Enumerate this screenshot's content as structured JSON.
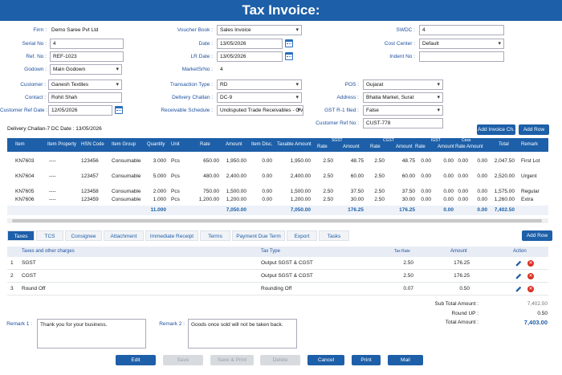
{
  "title": "Tax Invoice:",
  "form": {
    "firm": {
      "label": "Firm :",
      "value": "Demo Saree Pvt Ltd"
    },
    "serial_no": {
      "label": "Serial No :",
      "value": "4"
    },
    "ref_no": {
      "label": "Ref. No :",
      "value": "REF-1023"
    },
    "godown": {
      "label": "Godown :",
      "value": "Main Godown"
    },
    "voucher_book": {
      "label": "Voucher Book :",
      "value": "Sales Invoice"
    },
    "date": {
      "label": "Date :",
      "value": "13/05/2026"
    },
    "lr_date": {
      "label": "LR Date :",
      "value": "13/05/2026"
    },
    "market_sr_no": {
      "label": "MarketSrNo :",
      "value": "4"
    },
    "swdc": {
      "label": "SWDC :",
      "value": "4"
    },
    "cost_center": {
      "label": "Cost Center :",
      "value": "Default"
    },
    "indent_no": {
      "label": "Indent No :",
      "value": ""
    },
    "customer": {
      "label": "Customer :",
      "value": "Ganesh Textiles"
    },
    "contact": {
      "label": "Contact :",
      "value": "Rohit Shah"
    },
    "customer_ref_date": {
      "label": "Customer Ref Date :",
      "value": "12/05/2026"
    },
    "transaction_type": {
      "label": "Transaction Type :",
      "value": "RD"
    },
    "delivery_challan": {
      "label": "Delivery Challan :",
      "value": "DC-9"
    },
    "receivable_schedule": {
      "label": "Receivable Schedule :",
      "value": "Undisputed Trade Receivables - OV"
    },
    "pos": {
      "label": "POS :",
      "value": "Gujarat"
    },
    "address": {
      "label": "Address :",
      "value": "Bhatia Market, Surat"
    },
    "gst_r1_filed": {
      "label": "GST R-1 filed :",
      "value": "False"
    },
    "customer_ref_no": {
      "label": "Customer Ref No :",
      "value": "CUST-778"
    }
  },
  "delivery_note": "Delivery Challan-7 DC Date : 13/05/2026",
  "buttons": {
    "add_invoice": "Add Invoice Ch.",
    "add_row": "Add Row",
    "add_row2": "Add Row"
  },
  "items": {
    "headers": {
      "item": "Item",
      "property": "Item Property",
      "hsn": "HSN Code",
      "group": "Item Group",
      "qty": "Quantity",
      "unit": "Unit",
      "rate": "Rate",
      "amount": "Amount",
      "disc": "Item Disc.",
      "taxable": "Taxable Amount",
      "sgst": "SGST",
      "cgst": "CGST",
      "igst": "IGST",
      "cess": "Cess",
      "sub_rate": "Rate",
      "sub_amount": "Amount",
      "total": "Total",
      "remark": "Remark"
    },
    "rows": [
      {
        "item": "KN7603",
        "property": "----",
        "hsn": "123456",
        "group": "Consumable",
        "qty": "3.000",
        "unit": "Pcs",
        "rate": "650.00",
        "amount": "1,950.00",
        "disc": "0.00",
        "taxable": "1,950.00",
        "sgst_rate": "2.50",
        "sgst_amt": "48.75",
        "cgst_rate": "2.50",
        "cgst_amt": "48.75",
        "igst_rate": "0.00",
        "igst_amt": "0.00",
        "cess_rate": "0.00",
        "cess_amt": "0.00",
        "total": "2,047.50",
        "remark": "First Lot"
      },
      {
        "item": "KN7604",
        "property": "----",
        "hsn": "123457",
        "group": "Consumable",
        "qty": "5.000",
        "unit": "Pcs",
        "rate": "480.00",
        "amount": "2,400.00",
        "disc": "0.00",
        "taxable": "2,400.00",
        "sgst_rate": "2.50",
        "sgst_amt": "60.00",
        "cgst_rate": "2.50",
        "cgst_amt": "60.00",
        "igst_rate": "0.00",
        "igst_amt": "0.00",
        "cess_rate": "0.00",
        "cess_amt": "0.00",
        "total": "2,520.00",
        "remark": "Urgent"
      },
      {
        "item": "KN7605",
        "property": "----",
        "hsn": "123458",
        "group": "Consumable",
        "qty": "2.000",
        "unit": "Pcs",
        "rate": "750.00",
        "amount": "1,500.00",
        "disc": "0.00",
        "taxable": "1,500.00",
        "sgst_rate": "2.50",
        "sgst_amt": "37.50",
        "cgst_rate": "2.50",
        "cgst_amt": "37.50",
        "igst_rate": "0.00",
        "igst_amt": "0.00",
        "cess_rate": "0.00",
        "cess_amt": "0.00",
        "total": "1,575.00",
        "remark": "Regular"
      },
      {
        "item": "KN7606",
        "property": "----",
        "hsn": "123459",
        "group": "Consumable",
        "qty": "1.000",
        "unit": "Pcs",
        "rate": "1,200.00",
        "amount": "1,200.00",
        "disc": "0.00",
        "taxable": "1,200.00",
        "sgst_rate": "2.50",
        "sgst_amt": "30.00",
        "cgst_rate": "2.50",
        "cgst_amt": "30.00",
        "igst_rate": "0.00",
        "igst_amt": "0.00",
        "cess_rate": "0.00",
        "cess_amt": "0.00",
        "total": "1,260.00",
        "remark": "Extra"
      }
    ],
    "totals": {
      "qty": "11.000",
      "amount": "7,050.00",
      "taxable": "7,050.00",
      "sgst": "176.25",
      "cgst": "176.25",
      "igst": "0.00",
      "cess": "0.00",
      "total": "7,402.50"
    }
  },
  "tabs": [
    "Taxes",
    "TCS",
    "Consignee",
    "Attachment",
    "Immediate Receipt",
    "Terms",
    "Payment Due Term",
    "Export",
    "Tasks"
  ],
  "charges": {
    "headers": {
      "name": "Taxes and other charges",
      "type": "Tax Type",
      "rate": "Tax Rate",
      "amount": "Amount",
      "action": "Action"
    },
    "rows": [
      {
        "no": "1",
        "name": "SGST",
        "type": "Output SGST & CGST",
        "rate": "2.50",
        "amount": "176.25"
      },
      {
        "no": "2",
        "name": "CGST",
        "type": "Output SGST & CGST",
        "rate": "2.50",
        "amount": "176.25"
      },
      {
        "no": "3",
        "name": "Round Off",
        "type": "Rounding Off",
        "rate": "0.07",
        "amount": "0.50"
      }
    ]
  },
  "remarks": {
    "remark1_label": "Remark 1 :",
    "remark1": "Thank you for your business.",
    "remark2_label": "Remark 2 :",
    "remark2": "Goods once sold will not be taken back."
  },
  "summary": {
    "sub_total_label": "Sub Total Amount :",
    "sub_total": "7,402.50",
    "round_up_label": "Round UP :",
    "round_up": "0.50",
    "total_label": "Total Amount :",
    "total": "7,403.00"
  },
  "actions": {
    "edit": "Edit",
    "save": "Save",
    "save_print": "Save & Print",
    "delete": "Delete",
    "cancel": "Cancel",
    "print": "Print",
    "mail": "Mail"
  },
  "colors": {
    "primary": "#1d5fa8",
    "label": "#1d4f9e",
    "delete_icon": "#d93025"
  }
}
